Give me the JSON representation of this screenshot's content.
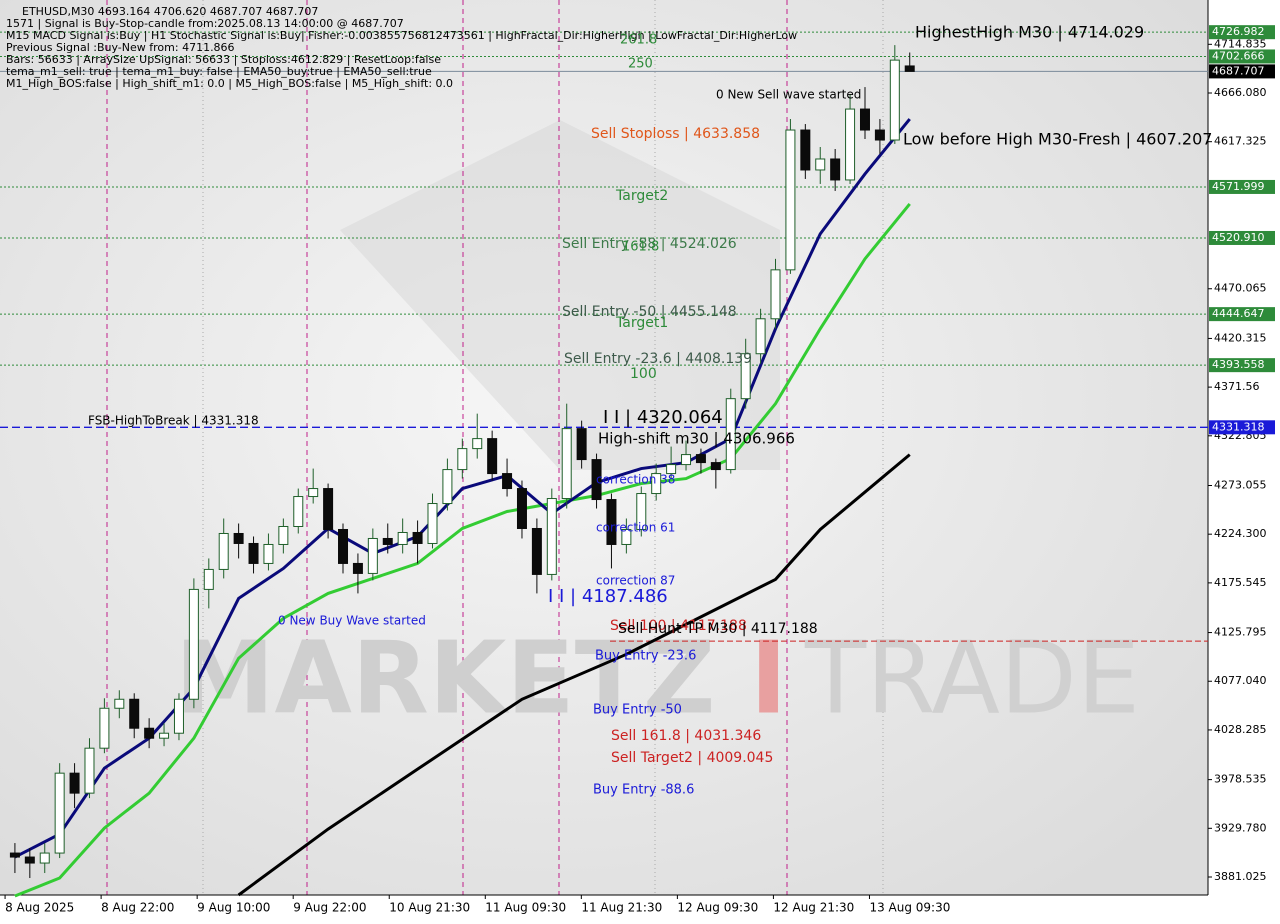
{
  "chart_data": {
    "type": "candlestick",
    "info": [
      "ETHUSD,M30  4693.164 4706.620 4687.707 4687.707",
      "1571 | Signal is Buy-Stop-candle from:2025.08.13 14:00:00 @ 4687.707",
      "M15 MACD Signal is:Buy | H1 Stochastic Signal is:Buy| Fisher:-0.003855756812473561 | HighFractal_Dir:HigherHigh | LowFractal_Dir:HigherLow",
      "Previous Signal :Buy-New from: 4711.866",
      "Bars: 56633 | ArraySize UpSignal: 56633 | Stoploss:4612.829 | ResetLoop:false",
      "tema_m1_sell: true | tema_m1_buy: false | EMA50_buy:true | EMA50_sell:true",
      "M1_High_BOS:false | High_shift_m1: 0.0 | M5_High_BOS:false | M5_High_shift: 0.0"
    ],
    "watermark": [
      "MARKETZ",
      "I",
      "TRADE"
    ],
    "xlim": [
      -1,
      80
    ],
    "ylim": [
      3863.0,
      4759.2
    ],
    "xticks": [
      {
        "value": -0.66,
        "label": "8 Aug 2025"
      },
      {
        "value": 5.78,
        "label": "8 Aug 22:00"
      },
      {
        "value": 12.22,
        "label": "9 Aug 10:00"
      },
      {
        "value": 18.66,
        "label": "9 Aug 22:00"
      },
      {
        "value": 25.1,
        "label": "10 Aug 21:30"
      },
      {
        "value": 31.54,
        "label": "11 Aug 09:30"
      },
      {
        "value": 37.98,
        "label": "11 Aug 21:30"
      },
      {
        "value": 44.42,
        "label": "12 Aug 09:30"
      },
      {
        "value": 50.86,
        "label": "12 Aug 21:30"
      },
      {
        "value": 57.3,
        "label": "13 Aug 09:30"
      }
    ],
    "yticks": [
      4714.835,
      {
        "value": 4666.08,
        "label": "4666.080"
      },
      4617.325,
      4470.065,
      4420.315,
      4371.56,
      4322.805,
      4273.055,
      {
        "value": 4224.3,
        "label": "4224.300"
      },
      4175.545,
      4125.795,
      {
        "value": 4077.04,
        "label": "4077.040"
      },
      4028.285,
      3978.535,
      {
        "value": 3929.78,
        "label": "3929.780"
      },
      3881.025
    ],
    "up_color": "#1f5f2a",
    "down_color": "#0b0b0b",
    "x": [
      0,
      1,
      2,
      3,
      4,
      5,
      6,
      7,
      8,
      9,
      10,
      11,
      12,
      13,
      14,
      15,
      16,
      17,
      18,
      19,
      20,
      21,
      22,
      23,
      24,
      25,
      26,
      27,
      28,
      29,
      30,
      31,
      32,
      33,
      34,
      35,
      36,
      37,
      38,
      39,
      40,
      41,
      42,
      43,
      44,
      45,
      46,
      47,
      48,
      49,
      50,
      51,
      52,
      53,
      54,
      55,
      56,
      57,
      58,
      59,
      60
    ],
    "ohlc": [
      [
        3905,
        3915,
        3885,
        3901
      ],
      [
        3901,
        3910,
        3880,
        3895
      ],
      [
        3895,
        3915,
        3885,
        3905
      ],
      [
        3905,
        3995,
        3900,
        3985
      ],
      [
        3985,
        3995,
        3950,
        3965
      ],
      [
        3965,
        4020,
        3960,
        4010
      ],
      [
        4010,
        4060,
        4005,
        4050
      ],
      [
        4050,
        4068,
        4040,
        4059
      ],
      [
        4059,
        4065,
        4020,
        4030
      ],
      [
        4030,
        4040,
        4010,
        4020
      ],
      [
        4020,
        4035,
        4012,
        4025
      ],
      [
        4025,
        4065,
        4018,
        4059
      ],
      [
        4059,
        4180,
        4050,
        4169
      ],
      [
        4169,
        4200,
        4150,
        4189
      ],
      [
        4189,
        4240,
        4180,
        4225
      ],
      [
        4225,
        4235,
        4200,
        4215
      ],
      [
        4215,
        4222,
        4185,
        4195
      ],
      [
        4195,
        4225,
        4188,
        4214
      ],
      [
        4214,
        4240,
        4205,
        4232
      ],
      [
        4232,
        4270,
        4225,
        4262
      ],
      [
        4262,
        4290,
        4255,
        4270
      ],
      [
        4270,
        4275,
        4220,
        4229
      ],
      [
        4229,
        4235,
        4185,
        4195
      ],
      [
        4195,
        4205,
        4165,
        4185
      ],
      [
        4185,
        4230,
        4178,
        4220
      ],
      [
        4220,
        4235,
        4205,
        4214
      ],
      [
        4214,
        4240,
        4205,
        4226
      ],
      [
        4226,
        4238,
        4195,
        4215
      ],
      [
        4215,
        4265,
        4210,
        4255
      ],
      [
        4255,
        4300,
        4248,
        4289
      ],
      [
        4289,
        4320,
        4280,
        4310
      ],
      [
        4310,
        4345,
        4300,
        4320
      ],
      [
        4320,
        4328,
        4278,
        4285
      ],
      [
        4285,
        4300,
        4262,
        4270
      ],
      [
        4270,
        4278,
        4220,
        4230
      ],
      [
        4230,
        4240,
        4165,
        4184
      ],
      [
        4184,
        4270,
        4178,
        4260
      ],
      [
        4260,
        4355,
        4250,
        4330
      ],
      [
        4330,
        4338,
        4290,
        4299
      ],
      [
        4299,
        4305,
        4250,
        4259
      ],
      [
        4259,
        4265,
        4190,
        4214
      ],
      [
        4214,
        4240,
        4205,
        4229
      ],
      [
        4229,
        4272,
        4222,
        4265
      ],
      [
        4265,
        4295,
        4258,
        4285
      ],
      [
        4285,
        4312,
        4280,
        4294
      ],
      [
        4294,
        4318,
        4288,
        4304
      ],
      [
        4304,
        4310,
        4285,
        4296
      ],
      [
        4296,
        4300,
        4270,
        4289
      ],
      [
        4289,
        4370,
        4285,
        4360
      ],
      [
        4360,
        4420,
        4350,
        4405
      ],
      [
        4405,
        4450,
        4395,
        4440
      ],
      [
        4440,
        4500,
        4430,
        4489
      ],
      [
        4489,
        4640,
        4485,
        4629
      ],
      [
        4629,
        4635,
        4580,
        4589
      ],
      [
        4589,
        4612,
        4575,
        4600
      ],
      [
        4600,
        4610,
        4568,
        4579
      ],
      [
        4579,
        4665,
        4575,
        4650
      ],
      [
        4650,
        4672,
        4620,
        4629
      ],
      [
        4629,
        4640,
        4605,
        4619
      ],
      [
        4619,
        4714.029,
        4615,
        4699
      ],
      [
        4693.164,
        4706.62,
        4687.707,
        4687.707
      ]
    ],
    "overlays": [
      {
        "color": "#000000",
        "width": 3,
        "x": [
          15,
          21,
          27,
          34,
          41,
          47,
          51,
          54,
          58,
          60
        ],
        "values": [
          3863,
          3929,
          3989,
          4059,
          4104,
          4149,
          4179,
          4229,
          4279,
          4304
        ]
      },
      {
        "color": "#33cc33",
        "width": 3,
        "x": [
          0,
          3,
          6,
          9,
          12,
          15,
          18,
          21,
          24,
          27,
          30,
          33,
          36,
          39,
          42,
          45,
          48,
          51,
          54,
          57,
          60
        ],
        "values": [
          3862,
          3880,
          3930,
          3965,
          4020,
          4100,
          4140,
          4165,
          4180,
          4195,
          4230,
          4247,
          4255,
          4263,
          4275,
          4280,
          4300,
          4355,
          4430,
          4500,
          4555
        ]
      },
      {
        "color": "#0a0a7a",
        "width": 3,
        "x": [
          0,
          3,
          6,
          9,
          12,
          15,
          18,
          21,
          24,
          27,
          30,
          33,
          36,
          39,
          42,
          45,
          48,
          51,
          54,
          57,
          60
        ],
        "values": [
          3901,
          3924,
          3990,
          4020,
          4070,
          4160,
          4190,
          4230,
          4205,
          4222,
          4270,
          4283,
          4245,
          4276,
          4290,
          4296,
          4320,
          4430,
          4525,
          4585,
          4640
        ]
      }
    ],
    "levels": [
      {
        "value": 4726.982,
        "color": "#2e8b3a",
        "style": "dotted"
      },
      {
        "value": 4702.666,
        "color": "#2e8b3a",
        "style": "dotted"
      },
      {
        "value": 4687.707,
        "color": "#000000",
        "style": "solid"
      },
      {
        "value": 4571.999,
        "color": "#2e8b3a",
        "style": "dotted"
      },
      {
        "value": 4520.91,
        "label": "4520.910",
        "color": "#2e8b3a",
        "style": "dotted"
      },
      {
        "value": 4444.647,
        "color": "#2e8b3a",
        "style": "dotted"
      },
      {
        "value": 4393.558,
        "color": "#2e8b3a",
        "style": "dotted"
      },
      {
        "value": 4331.318,
        "color": "#1a1ad8",
        "style": "dashed"
      }
    ],
    "hunt_level": {
      "value": 4117.188,
      "color": "#cc2222"
    },
    "annotations": [
      {
        "text": "261.8",
        "color": "#2e8b3a"
      },
      {
        "text": "250",
        "color": "#2e8b3a"
      },
      {
        "text": "HighestHigh   M30 | 4714.029",
        "color": "#000000"
      },
      {
        "text": "0 New Sell wave started",
        "color": "#000000"
      },
      {
        "text": "Sell Stoploss | 4633.858",
        "color": "#e0561a"
      },
      {
        "text": "Low before High   M30-Fresh | 4607.207",
        "color": "#000000"
      },
      {
        "text": "Target2",
        "color": "#2e8b3a"
      },
      {
        "text": "Sell Entry -88 | 4524.026",
        "color": "#3d7a4a"
      },
      {
        "text": "161.8",
        "color": "#2e8b3a"
      },
      {
        "text": "Sell Entry -50 | 4455.148",
        "color": "#3d5a4a"
      },
      {
        "text": "Target1",
        "color": "#2e8b3a"
      },
      {
        "text": "Sell Entry -23.6 | 4408.139",
        "color": "#3d5a4a"
      },
      {
        "text": "100",
        "color": "#2e8b3a"
      },
      {
        "text": "FSB-HighToBreak | 4331.318",
        "color": "#000000"
      },
      {
        "text": "I I | 4320.064",
        "color": "#000000"
      },
      {
        "text": "High-shift m30 | 4306.966",
        "color": "#000000"
      },
      {
        "text": "correction 38",
        "color": "#1a1ad8"
      },
      {
        "text": "correction 61",
        "color": "#1a1ad8"
      },
      {
        "text": "correction 87",
        "color": "#1a1ad8"
      },
      {
        "text": "I I | 4187.486",
        "color": "#1a1ad8"
      },
      {
        "text": "0 New Buy Wave started",
        "color": "#1a1ad8"
      },
      {
        "text": "Sell 100 | 4117.188",
        "color": "#cc2222"
      },
      {
        "text": "Sell Hunt TP M30 | 4117.188",
        "color": "#000000"
      },
      {
        "text": "Buy Entry -23.6",
        "color": "#1a1ad8"
      },
      {
        "text": "Buy Entry -50",
        "color": "#1a1ad8"
      },
      {
        "text": "Sell 161.8 | 4031.346",
        "color": "#cc2222"
      },
      {
        "text": "Sell Target2 | 4009.045",
        "color": "#cc2222"
      },
      {
        "text": "Buy Entry -88.6",
        "color": "#1a1ad8"
      }
    ]
  }
}
